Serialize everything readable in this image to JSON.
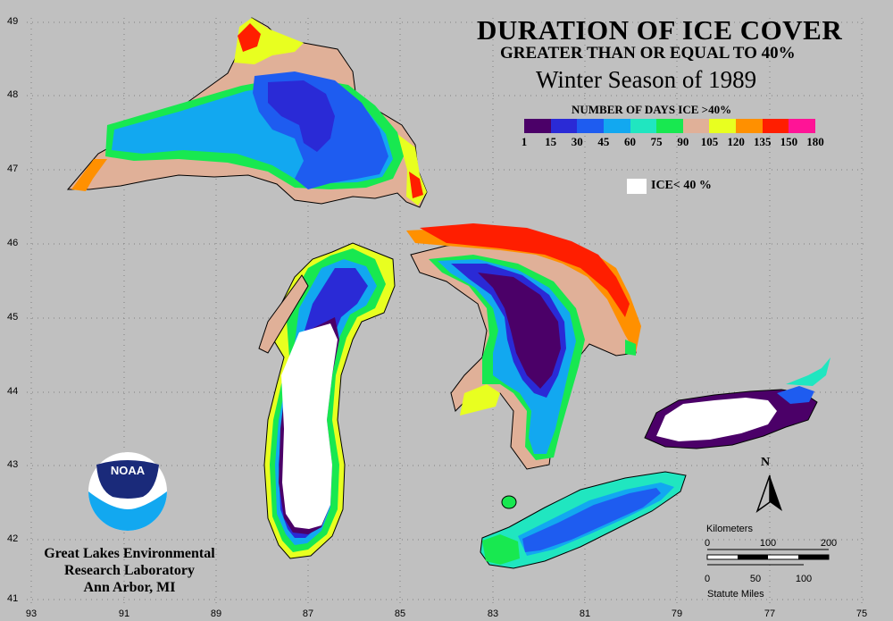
{
  "title": {
    "line1": "DURATION OF ICE COVER",
    "line2": "GREATER THAN OR EQUAL TO 40%",
    "line3": "Winter Season of 1989"
  },
  "legend": {
    "title": "NUMBER OF DAYS ICE >40%",
    "colors": [
      "#4b0068",
      "#2a2ad6",
      "#1e5cf0",
      "#12a8f0",
      "#20e6c0",
      "#18e850",
      "#e0b098",
      "#e8ff20",
      "#ff9000",
      "#ff1e00",
      "#ff1496"
    ],
    "ticks": [
      "1",
      "15",
      "30",
      "45",
      "60",
      "75",
      "90",
      "105",
      "120",
      "135",
      "150",
      "180"
    ],
    "ice_label": "ICE< 40 %"
  },
  "axes": {
    "latitudes": [
      "49",
      "48",
      "47",
      "46",
      "45",
      "44",
      "43",
      "42",
      "41"
    ],
    "longitudes": [
      "93",
      "91",
      "89",
      "87",
      "85",
      "83",
      "81",
      "79",
      "77",
      "75"
    ]
  },
  "organization": {
    "line1": "Great Lakes Environmental",
    "line2": "Research Laboratory",
    "line3": "Ann Arbor, MI",
    "logo_text": "NOAA"
  },
  "north_arrow": {
    "label": "N"
  },
  "scale_bar": {
    "km_label": "Kilometers",
    "km_ticks": [
      "0",
      "100",
      "200"
    ],
    "mi_label": "Statute Miles",
    "mi_ticks": [
      "0",
      "50",
      "100"
    ]
  },
  "colors": {
    "background": "#c0c0c0",
    "land_outline": "#000000",
    "ice_below": "#ffffff"
  }
}
